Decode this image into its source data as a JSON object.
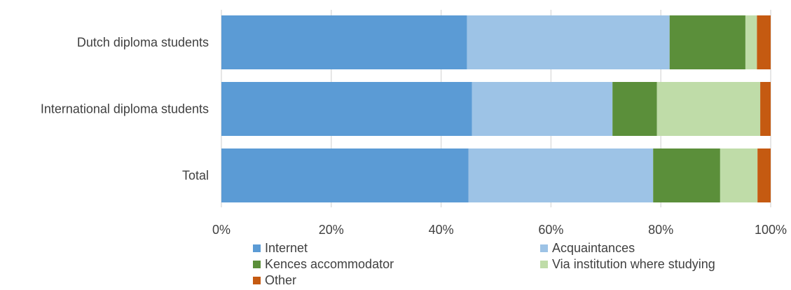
{
  "chart_data": {
    "type": "bar",
    "orientation": "horizontal",
    "stacked": "percent",
    "categories": [
      "Dutch diploma students",
      "International diploma students",
      "Total"
    ],
    "series": [
      {
        "name": "Internet",
        "color": "#5b9bd5",
        "values": [
          44.7,
          45.6,
          45.0
        ]
      },
      {
        "name": "Acquaintances",
        "color": "#9dc3e6",
        "values": [
          36.9,
          25.6,
          33.6
        ]
      },
      {
        "name": "Kences accommodator",
        "color": "#5b8f3a",
        "values": [
          13.8,
          8.1,
          12.2
        ]
      },
      {
        "name": "Via institution where studying",
        "color": "#bfdca8",
        "values": [
          2.1,
          18.8,
          6.8
        ]
      },
      {
        "name": "Other",
        "color": "#c55a11",
        "values": [
          2.5,
          1.9,
          2.4
        ]
      }
    ],
    "xticks": [
      "0%",
      "20%",
      "40%",
      "60%",
      "80%",
      "100%"
    ],
    "xlim": [
      0,
      100
    ],
    "grid": true,
    "legend": "bottom"
  }
}
